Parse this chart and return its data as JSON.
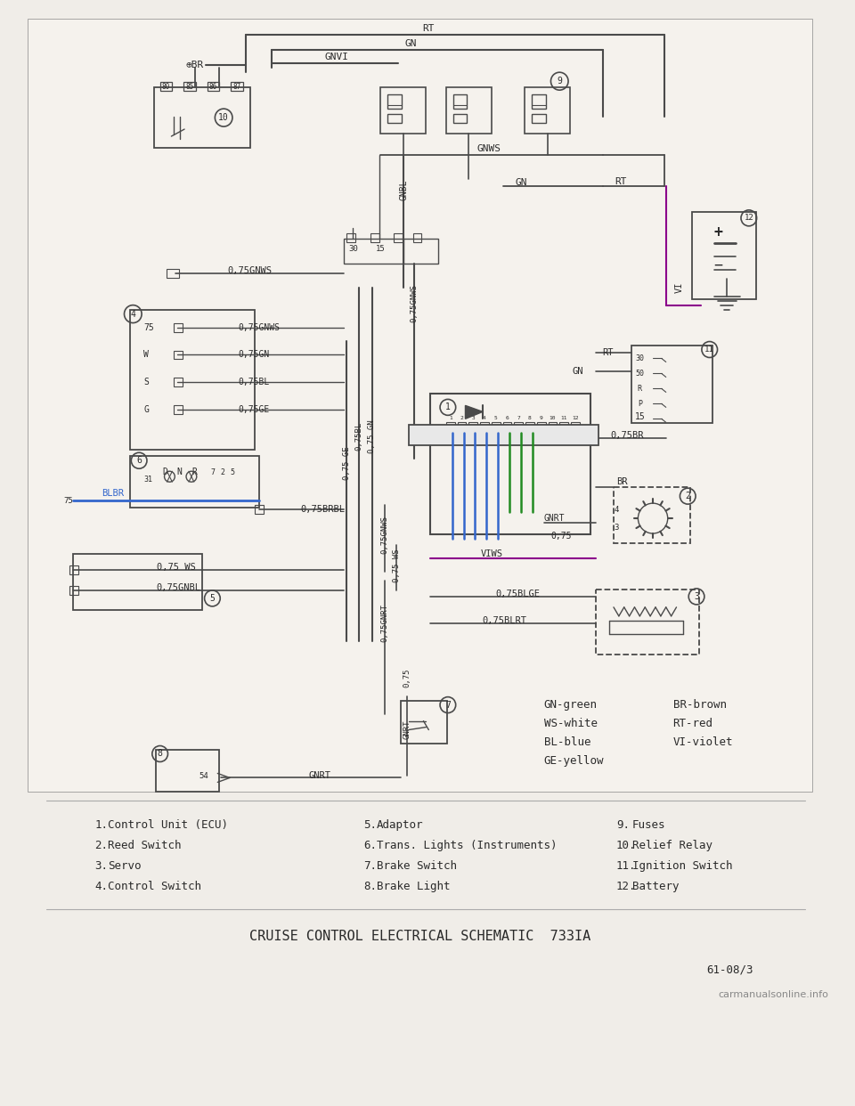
{
  "bg_color": "#f0ede8",
  "line_color": "#4a4a4a",
  "title": "CRUISE CONTROL ELECTRICAL SCHEMATIC  733IA",
  "page_ref": "61-08/3",
  "watermark": "carmanualsonline.info",
  "color_legend": [
    [
      "GN-green",
      "BR-brown"
    ],
    [
      "WS-white",
      "RT-red"
    ],
    [
      "BL-blue",
      "VI-violet"
    ],
    [
      "GE-yellow",
      ""
    ]
  ],
  "legend_items": [
    [
      "1.",
      "Control Unit (ECU)",
      "5.",
      "Adaptor",
      "9.",
      "Fuses"
    ],
    [
      "2.",
      "Reed Switch",
      "6.",
      "Trans. Lights (Instruments)",
      "10.",
      "Relief Relay"
    ],
    [
      "3.",
      "Servo",
      "7.",
      "Brake Switch",
      "11.",
      "Ignition Switch"
    ],
    [
      "4.",
      "Control Switch",
      "8.",
      "Brake Light",
      "12.",
      "Battery"
    ]
  ],
  "blue_wire_color": "#3366cc",
  "green_wire_color": "#228B22",
  "dark_line": "#2a2a2a"
}
